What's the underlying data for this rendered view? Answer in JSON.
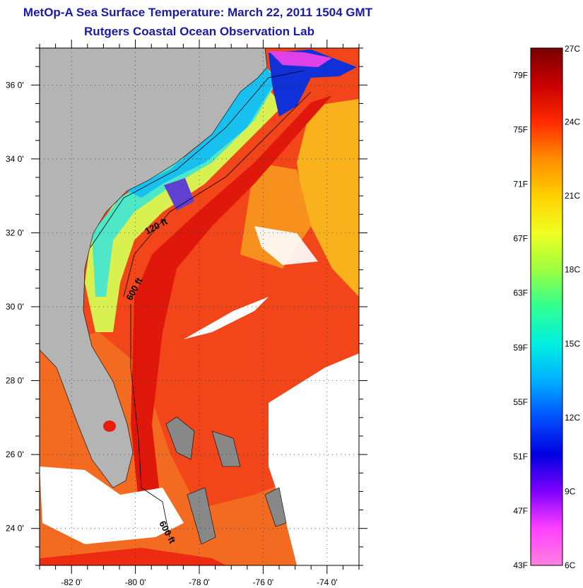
{
  "title": "MetOp-A Sea Surface Temperature:  March 22, 2011 1504 GMT",
  "subtitle": "Rutgers Coastal Ocean Observation Lab",
  "map": {
    "lon_range": [
      -83,
      -73
    ],
    "lat_range": [
      23,
      37
    ],
    "lat_ticks": [
      {
        "value": 36,
        "label": "36 0'"
      },
      {
        "value": 34,
        "label": "34 0'"
      },
      {
        "value": 32,
        "label": "32 0'"
      },
      {
        "value": 30,
        "label": "30 0'"
      },
      {
        "value": 28,
        "label": "28 0'"
      },
      {
        "value": 26,
        "label": "26 0'"
      },
      {
        "value": 24,
        "label": "24 0'"
      }
    ],
    "lon_ticks": [
      {
        "value": -82,
        "label": "-82 0'"
      },
      {
        "value": -80,
        "label": "-80 0'"
      },
      {
        "value": -78,
        "label": "-78 0'"
      },
      {
        "value": -76,
        "label": "-76 0'"
      },
      {
        "value": -74,
        "label": "-74 0'"
      }
    ],
    "depth_labels": [
      {
        "text": "120 ft"
      },
      {
        "text": "600 ft"
      },
      {
        "text": "600 ft"
      }
    ],
    "colors": {
      "land": "#b4b4b4",
      "warm_water": "#e81d0b",
      "mid_water": "#f86a10",
      "cool_water": "#ffe424",
      "shelf_water": "#7ff0a0",
      "cold_water": "#10c8f0",
      "clouds": "#ffffff"
    }
  },
  "colorbar": {
    "fahrenheit": [
      "79F",
      "75F",
      "71F",
      "67F",
      "63F",
      "59F",
      "55F",
      "51F",
      "47F",
      "43F"
    ],
    "celsius": [
      "27C",
      "24C",
      "21C",
      "18C",
      "15C",
      "12C",
      "9C",
      "6C"
    ],
    "f_range": [
      43,
      81
    ],
    "c_range": [
      6,
      27
    ],
    "stops": [
      "#7a0000",
      "#c80000",
      "#ff2a00",
      "#ff8c00",
      "#ffd000",
      "#f0ff20",
      "#9cff40",
      "#30ff90",
      "#00f0e0",
      "#00b0ff",
      "#0050ff",
      "#0000e0",
      "#8000ff",
      "#ff40ff",
      "#ff80e0"
    ]
  }
}
